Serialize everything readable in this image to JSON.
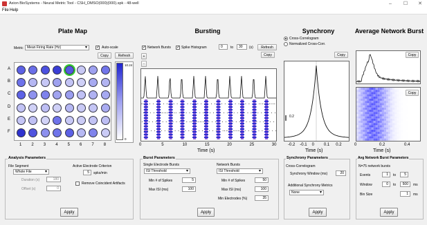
{
  "window": {
    "title": "Axion BioSystems - Neural Metric Tool - CSH_DMSO(000)(000).spk - 48-well",
    "min": "–",
    "max": "☐",
    "close": "✕"
  },
  "menu": [
    "File",
    "Help"
  ],
  "plate_map": {
    "title": "Plate Map",
    "metric_label": "Metric",
    "metric_value": "Mean Firing Rate (Hz)",
    "autoscale_label": "Auto-scale",
    "autoscale_checked": true,
    "copy": "Copy",
    "refresh": "Refresh",
    "scale_max": "10.24",
    "scale_min": "0",
    "row_labels": [
      "A",
      "B",
      "C",
      "D",
      "E",
      "F"
    ],
    "col_labels": [
      "1",
      "2",
      "3",
      "4",
      "5",
      "6",
      "7",
      "8"
    ],
    "wells": [
      [
        "#5d62e6",
        "#6a6fe8",
        "#4c51e0",
        "#3a3ed6",
        "#5559e2",
        "#c8c9f5",
        "#9ea1f0",
        "#7175ea"
      ],
      [
        "#6d72ea",
        "#b5b7f3",
        "#c6c7f6",
        "#9ea1ef",
        "#c3c4f5",
        "#cfd0f7",
        "#a7aaf1",
        "#b2b4f2"
      ],
      [
        "#5e63e6",
        "#8f92ee",
        "#7e82ec",
        "#a1a4f0",
        "#9a9def",
        "#c0c1f5",
        "#b0b2f2",
        "#a6a9f1"
      ],
      [
        "#c2c3f5",
        "#d0d1f7",
        "#bdbef4",
        "#cfd0f7",
        "#b6b8f3",
        "#c9caf6",
        "#c4c5f5",
        "#aaacf2"
      ],
      [
        "#c5c6f6",
        "#bfc0f4",
        "#d2d3f7",
        "#6f73ea",
        "#c8c9f6",
        "#cbccf6",
        "#c2c3f5",
        "#bdbef4"
      ],
      [
        "#2f33cf",
        "#5054df",
        "#8d90ee",
        "#6f74ea",
        "#5c61e5",
        "#b7b9f3",
        "#8084ec",
        "#cacbf6"
      ]
    ],
    "selected_well": "A5"
  },
  "bursting": {
    "title": "Bursting",
    "network_bursts_label": "Network Bursts",
    "spike_histogram_label": "Spike Histogram",
    "network_bursts_checked": true,
    "spike_histogram_checked": true,
    "range_from": "0",
    "range_to_label": "to",
    "range_to": "30",
    "units": "(s)",
    "refresh": "Refresh",
    "copy": "Copy",
    "zoom_in": "+",
    "zoom_out": "-",
    "xlabel": "Time (s)",
    "xticks": [
      "0",
      "5",
      "10",
      "15",
      "20",
      "25",
      "30"
    ]
  },
  "synchrony": {
    "title": "Synchrony",
    "mode_options": [
      "Cross-Correlogram",
      "Normalized Cross-Corr."
    ],
    "mode_selected": 0,
    "copy": "Copy",
    "ylabel_tick": "0.2",
    "xlabel": "Time (s)",
    "xticks": [
      "-0.2",
      "-0.1",
      "0",
      "0.1",
      "0.2"
    ]
  },
  "avg_network_burst": {
    "title": "Average Network Burst",
    "copy_top": "Copy",
    "copy_bottom": "Copy",
    "xlabel": "Time (s)",
    "xticks": [
      "0",
      "0.2",
      "0.4"
    ]
  },
  "analysis_params": {
    "title": "Analysis Parameters",
    "file_segment_label": "File Segment",
    "file_segment_value": "Whole File",
    "duration_label": "Duration (s)",
    "duration_value": "180",
    "offset_label": "Offset (s)",
    "offset_value": "0",
    "active_electrode_label": "Active Electrode Criterion",
    "active_electrode_value": "5",
    "active_electrode_units": "spks/min",
    "remove_artifacts_label": "Remove Coincident Artifacts",
    "apply": "Apply"
  },
  "burst_params": {
    "title": "Burst Parameters",
    "single_label": "Single Electrode Bursts",
    "single_method": "ISI Threshold",
    "min_spikes_label": "Min # of Spikes",
    "min_spikes_value": "5",
    "max_isi_label": "Max ISI (ms)",
    "max_isi_value": "100",
    "network_label": "Network Bursts",
    "network_method": "ISI Threshold",
    "net_min_spikes_label": "Min # of Spikes",
    "net_min_spikes_value": "50",
    "net_max_isi_label": "Max ISI (ms)",
    "net_max_isi_value": "100",
    "min_electrodes_label": "Min Electrodes (%)",
    "min_electrodes_value": "35",
    "apply": "Apply"
  },
  "synchrony_params": {
    "title": "Synchrony Parameters",
    "cross_label": "Cross-Correlogram",
    "window_label": "Synchrony Window (ms)",
    "window_value": "20",
    "additional_label": "Additional Synchrony Metrics",
    "additional_value": "None",
    "apply": "Apply"
  },
  "avg_burst_params": {
    "title": "Avg Network Burst Parameters",
    "count_label": "N=75 network bursts",
    "events_label": "Events",
    "events_from": "1",
    "events_to_label": "to",
    "events_to": "5",
    "window_label": "Window",
    "window_from": "0",
    "window_to_label": "to",
    "window_to": "500",
    "window_units": "ms",
    "bin_label": "Bin Size",
    "bin_value": "1",
    "bin_units": "ms",
    "apply": "Apply"
  },
  "colors": {
    "accent": "#3a3ed6",
    "panel": "#f0f0f0"
  }
}
